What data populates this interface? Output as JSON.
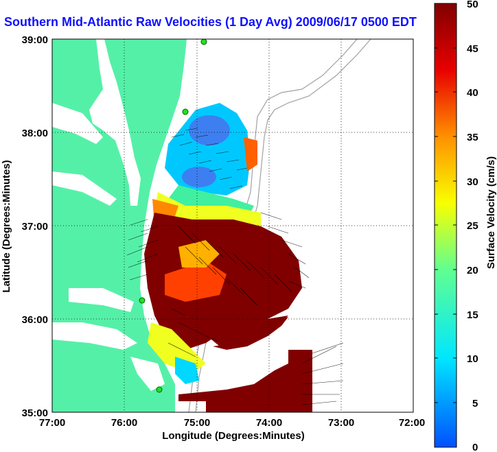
{
  "title": "Southern Mid-Atlantic Raw Velocities (1 Day Avg) 2009/06/17 0500 EDT",
  "axes": {
    "xlabel": "Longitude (Degrees:Minutes)",
    "ylabel": "Latitude (Degrees:Minutes)",
    "xticks": [
      "77:00",
      "76:00",
      "75:00",
      "74:00",
      "73:00",
      "72:00"
    ],
    "yticks": [
      "39:00",
      "38:00",
      "37:00",
      "36:00",
      "35:00"
    ]
  },
  "colorbar": {
    "label": "Surface Velocity (cm/s)",
    "ticks": [
      "50",
      "45",
      "40",
      "35",
      "30",
      "25",
      "20",
      "15",
      "10",
      "5",
      "0"
    ],
    "range": [
      0,
      50
    ]
  },
  "colors": {
    "land": "#55f0a8",
    "title": "#1010ff",
    "grid": "#000000"
  }
}
